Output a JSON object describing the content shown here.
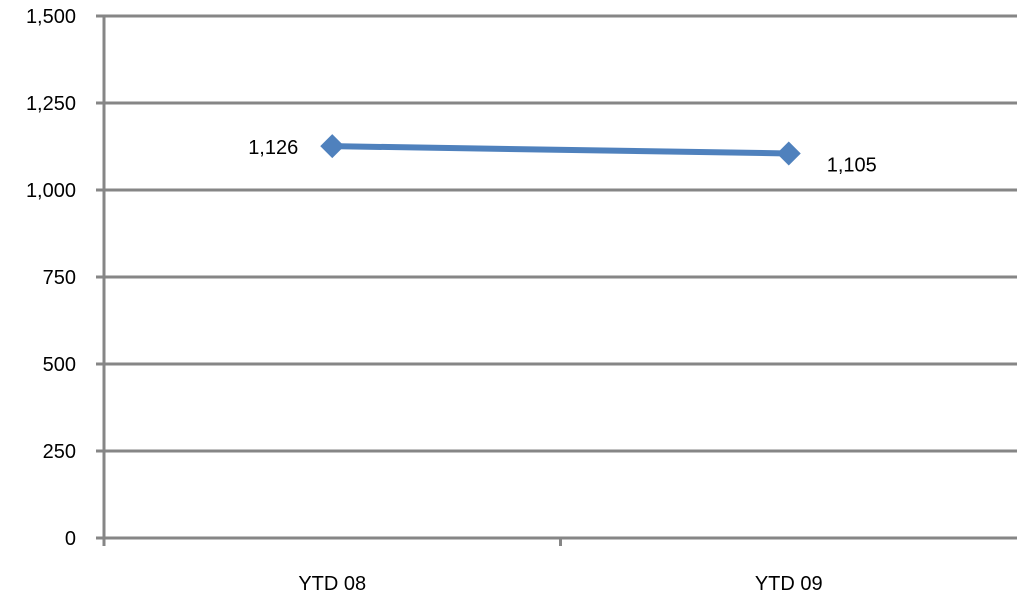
{
  "chart_data": {
    "type": "line",
    "title": "",
    "xlabel": "",
    "ylabel": "",
    "categories": [
      "YTD 08",
      "YTD 09"
    ],
    "series": [
      {
        "values": [
          1126,
          1105
        ],
        "data_labels": [
          "1,126",
          "1,105"
        ],
        "color": "#4F81BD",
        "marker": "diamond"
      }
    ],
    "ylim": [
      0,
      1500
    ],
    "yticks": [
      0,
      250,
      500,
      750,
      1000,
      1250,
      1500
    ],
    "ytick_labels": [
      "0",
      "250",
      "500",
      "750",
      "1,000",
      "1,250",
      "1,500"
    ],
    "grid": true,
    "legend": "none",
    "colors": {
      "gridline": "#868686",
      "axis": "#868686",
      "text": "#000000"
    }
  }
}
